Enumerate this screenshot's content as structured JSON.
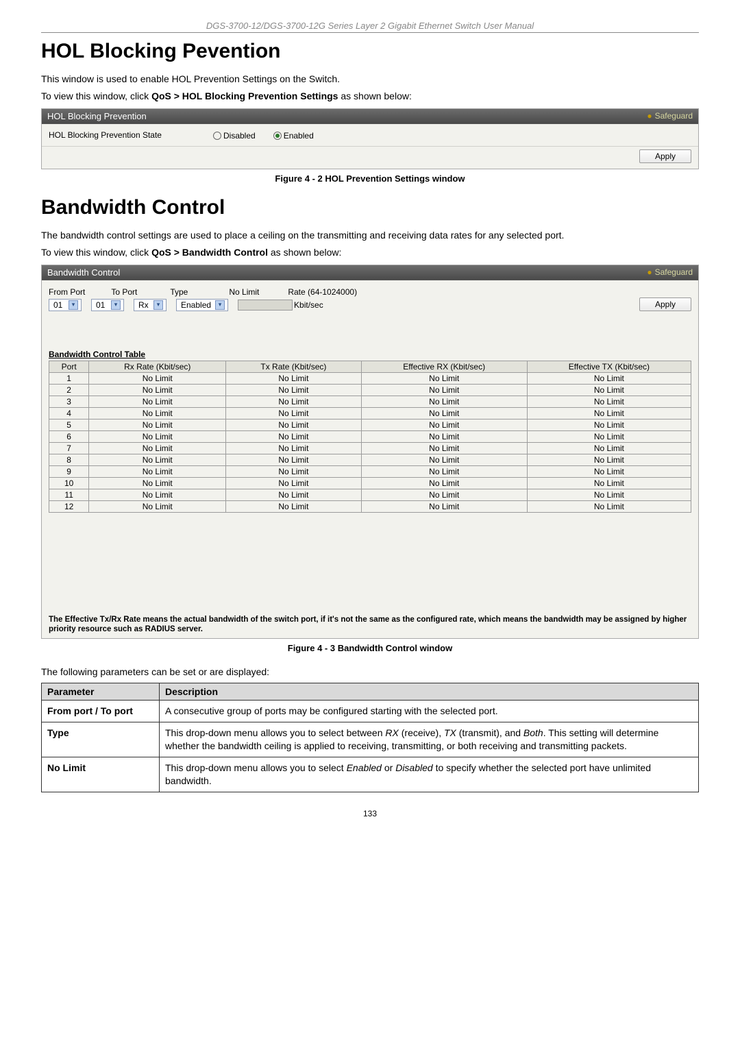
{
  "header_line": "DGS-3700-12/DGS-3700-12G Series Layer 2 Gigabit Ethernet Switch User Manual",
  "hol": {
    "heading": "HOL Blocking Pevention",
    "intro": "This window is used to enable HOL Prevention Settings on the Switch.",
    "nav_sentence_prefix": "To view this window, click ",
    "nav_bold": "QoS > HOL Blocking Prevention Settings",
    "nav_sentence_suffix": " as shown below:",
    "panel_title": "HOL Blocking Prevention",
    "safeguard": "Safeguard",
    "state_label": "HOL Blocking Prevention State",
    "disabled_label": "Disabled",
    "enabled_label": "Enabled",
    "apply_label": "Apply",
    "caption": "Figure 4 - 2 HOL Prevention Settings window"
  },
  "bw": {
    "heading": "Bandwidth Control",
    "intro": "The bandwidth control settings are used to place a ceiling on the transmitting and receiving data rates for any selected port.",
    "nav_sentence_prefix": "To view this window, click ",
    "nav_bold": "QoS > Bandwidth Control",
    "nav_sentence_suffix": " as shown below:",
    "panel_title": "Bandwidth Control",
    "safeguard": "Safeguard",
    "labels": {
      "from_port": "From Port",
      "to_port": "To Port",
      "type": "Type",
      "no_limit": "No Limit",
      "rate": "Rate (64-1024000)"
    },
    "values": {
      "from_port": "01",
      "to_port": "01",
      "type": "Rx",
      "no_limit": "Enabled",
      "rate_unit": "Kbit/sec"
    },
    "apply_label": "Apply",
    "table_caption": "Bandwidth Control Table",
    "columns": [
      "Port",
      "Rx Rate (Kbit/sec)",
      "Tx Rate (Kbit/sec)",
      "Effective RX (Kbit/sec)",
      "Effective TX (Kbit/sec)"
    ],
    "rows": [
      [
        "1",
        "No Limit",
        "No Limit",
        "No Limit",
        "No Limit"
      ],
      [
        "2",
        "No Limit",
        "No Limit",
        "No Limit",
        "No Limit"
      ],
      [
        "3",
        "No Limit",
        "No Limit",
        "No Limit",
        "No Limit"
      ],
      [
        "4",
        "No Limit",
        "No Limit",
        "No Limit",
        "No Limit"
      ],
      [
        "5",
        "No Limit",
        "No Limit",
        "No Limit",
        "No Limit"
      ],
      [
        "6",
        "No Limit",
        "No Limit",
        "No Limit",
        "No Limit"
      ],
      [
        "7",
        "No Limit",
        "No Limit",
        "No Limit",
        "No Limit"
      ],
      [
        "8",
        "No Limit",
        "No Limit",
        "No Limit",
        "No Limit"
      ],
      [
        "9",
        "No Limit",
        "No Limit",
        "No Limit",
        "No Limit"
      ],
      [
        "10",
        "No Limit",
        "No Limit",
        "No Limit",
        "No Limit"
      ],
      [
        "11",
        "No Limit",
        "No Limit",
        "No Limit",
        "No Limit"
      ],
      [
        "12",
        "No Limit",
        "No Limit",
        "No Limit",
        "No Limit"
      ]
    ],
    "note": "The Effective Tx/Rx Rate means the actual bandwidth of the switch port, if it's not the same as the configured rate, which means the bandwidth may be assigned by higher priority resource such as RADIUS server.",
    "caption": "Figure 4 - 3 Bandwidth Control window"
  },
  "params": {
    "intro": "The following parameters can be set or are displayed:",
    "header_param": "Parameter",
    "header_desc": "Description",
    "rows": [
      {
        "key": "From port / To port",
        "desc_plain": "A consecutive group of ports may be configured starting with the selected port."
      },
      {
        "key": "Type",
        "desc_html": "This drop-down menu allows you to select between <span class=\"italic\">RX</span> (receive), <span class=\"italic\">TX</span> (transmit), and <span class=\"italic\">Both</span>. This setting will determine whether the bandwidth ceiling is applied to receiving, transmitting, or both receiving and transmitting packets."
      },
      {
        "key": "No Limit",
        "desc_html": "This drop-down menu allows you to select <span class=\"italic\">Enabled</span> or <span class=\"italic\">Disabled</span> to specify whether the selected port have unlimited bandwidth."
      }
    ]
  },
  "page_number": "133",
  "colors": {
    "header_text": "#888888",
    "panel_title_bg": "#5a5a5a",
    "panel_body_bg": "#f2f2ed",
    "table_border": "#9c9c9c",
    "param_header_bg": "#d9d9d9"
  }
}
